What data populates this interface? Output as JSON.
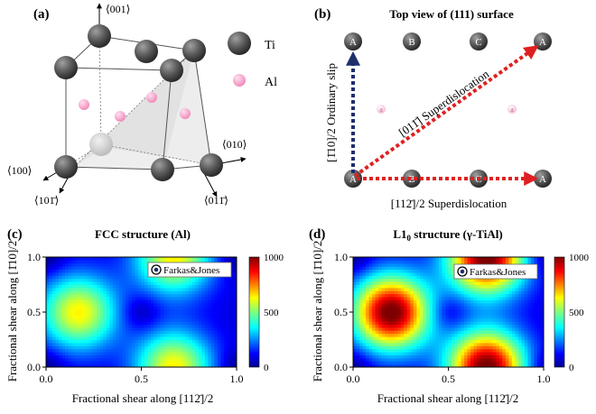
{
  "panel_a": {
    "label": "(a)",
    "axis_top": "⟨001⟩",
    "axis_right": "⟨010⟩",
    "axis_left": "⟨100⟩",
    "axis_bl": "⟨101̄⟩",
    "axis_br": "⟨011̄⟩",
    "legend_ti": "Ti",
    "legend_al": "Al",
    "color_ti": "#5a5a5a",
    "color_al": "#f4a6c8"
  },
  "panel_b": {
    "label": "(b)",
    "title": "Top view of (111) surface",
    "top_row": [
      "A",
      "B",
      "C",
      "A"
    ],
    "mid_row": [
      "a",
      "a"
    ],
    "bottom_row": [
      "A",
      "B",
      "C",
      "A"
    ],
    "ordinary_slip": "[1̄10]/2 Ordinary slip",
    "diag": "[011̄] Superdislocation",
    "bottom": "[112̄]/2 Superdislocation",
    "color_blue": "#1f2f6e",
    "color_red": "#e02020"
  },
  "panel_c": {
    "label": "(c)",
    "title": "FCC structure (Al)",
    "legend": "Farkas&Jones",
    "xlabel": "Fractional shear along [112̄]/2",
    "ylabel": "Fractional shear along [1̄10]/2"
  },
  "panel_d": {
    "label": "(d)",
    "title_main": "L1",
    "title_sub": "0",
    "title_rest": " structure (γ-TiAl)",
    "legend": "Farkas&Jones",
    "xlabel": "Fractional shear along [112̄]/2",
    "ylabel": "Fractional shear along [1̄10]/2"
  },
  "chart_data": [
    {
      "type": "heatmap",
      "panel": "c",
      "title": "FCC structure (Al)",
      "xlabel": "Fractional shear along [112̄]/2",
      "ylabel": "Fractional shear along [1̄10]/2",
      "xlim": [
        0,
        1
      ],
      "ylim": [
        0,
        1
      ],
      "xticks": [
        "0.0",
        "0.5",
        "1.0"
      ],
      "yticks": [
        "0.0",
        "0.5",
        "1.0"
      ],
      "colorbar": {
        "min": 0,
        "max": 1000,
        "ticks": [
          "0",
          "500",
          "1000"
        ]
      },
      "minima": [
        [
          0.0,
          0.0
        ],
        [
          0.5,
          0.5
        ],
        [
          1.0,
          0.0
        ],
        [
          0.0,
          1.0
        ],
        [
          1.0,
          1.0
        ]
      ],
      "maxima": [
        [
          0.17,
          0.5
        ],
        [
          0.67,
          0.0
        ],
        [
          0.67,
          1.0
        ]
      ],
      "peak_value": 560
    },
    {
      "type": "heatmap",
      "panel": "d",
      "title": "L1₀ structure (γ-TiAl)",
      "xlabel": "Fractional shear along [112̄]/2",
      "ylabel": "Fractional shear along [1̄10]/2",
      "xlim": [
        0,
        1
      ],
      "ylim": [
        0,
        1
      ],
      "xticks": [
        "0.0",
        "0.5",
        "1.0"
      ],
      "yticks": [
        "0.0",
        "0.5",
        "1.0"
      ],
      "colorbar": {
        "min": 0,
        "max": 1000,
        "ticks": [
          "0",
          "500",
          "1000"
        ]
      },
      "minima": [
        [
          0.0,
          0.0
        ],
        [
          0.5,
          0.5
        ],
        [
          1.0,
          0.0
        ],
        [
          0.0,
          1.0
        ],
        [
          1.0,
          1.0
        ]
      ],
      "maxima": [
        [
          0.2,
          0.5
        ],
        [
          0.7,
          0.0
        ],
        [
          0.7,
          1.0
        ]
      ],
      "peak_value": 950
    }
  ]
}
